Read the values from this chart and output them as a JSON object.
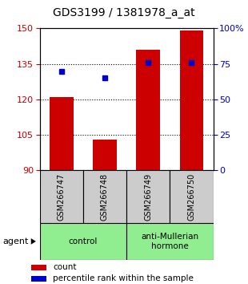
{
  "title": "GDS3199 / 1381978_a_at",
  "samples": [
    "GSM266747",
    "GSM266748",
    "GSM266749",
    "GSM266750"
  ],
  "bar_values": [
    121,
    103,
    141,
    149
  ],
  "dot_values_pct": [
    70,
    65,
    76,
    76
  ],
  "ylim_left": [
    90,
    150
  ],
  "ylim_right": [
    0,
    100
  ],
  "yticks_left": [
    90,
    105,
    120,
    135,
    150
  ],
  "yticks_right": [
    0,
    25,
    50,
    75,
    100
  ],
  "ytick_labels_right": [
    "0",
    "25",
    "50",
    "75",
    "100%"
  ],
  "bar_color": "#cc0000",
  "dot_color": "#0000cc",
  "bar_width": 0.55,
  "groups": [
    {
      "label": "control",
      "samples": [
        0,
        1
      ],
      "color": "#90ee90"
    },
    {
      "label": "anti-Mullerian\nhormone",
      "samples": [
        2,
        3
      ],
      "color": "#90ee90"
    }
  ],
  "sample_box_color": "#cccccc",
  "agent_label": "agent",
  "legend_items": [
    {
      "color": "#cc0000",
      "label": "count"
    },
    {
      "color": "#0000cc",
      "label": "percentile rank within the sample"
    }
  ],
  "title_fontsize": 10,
  "tick_fontsize": 8,
  "sample_fontsize": 7
}
